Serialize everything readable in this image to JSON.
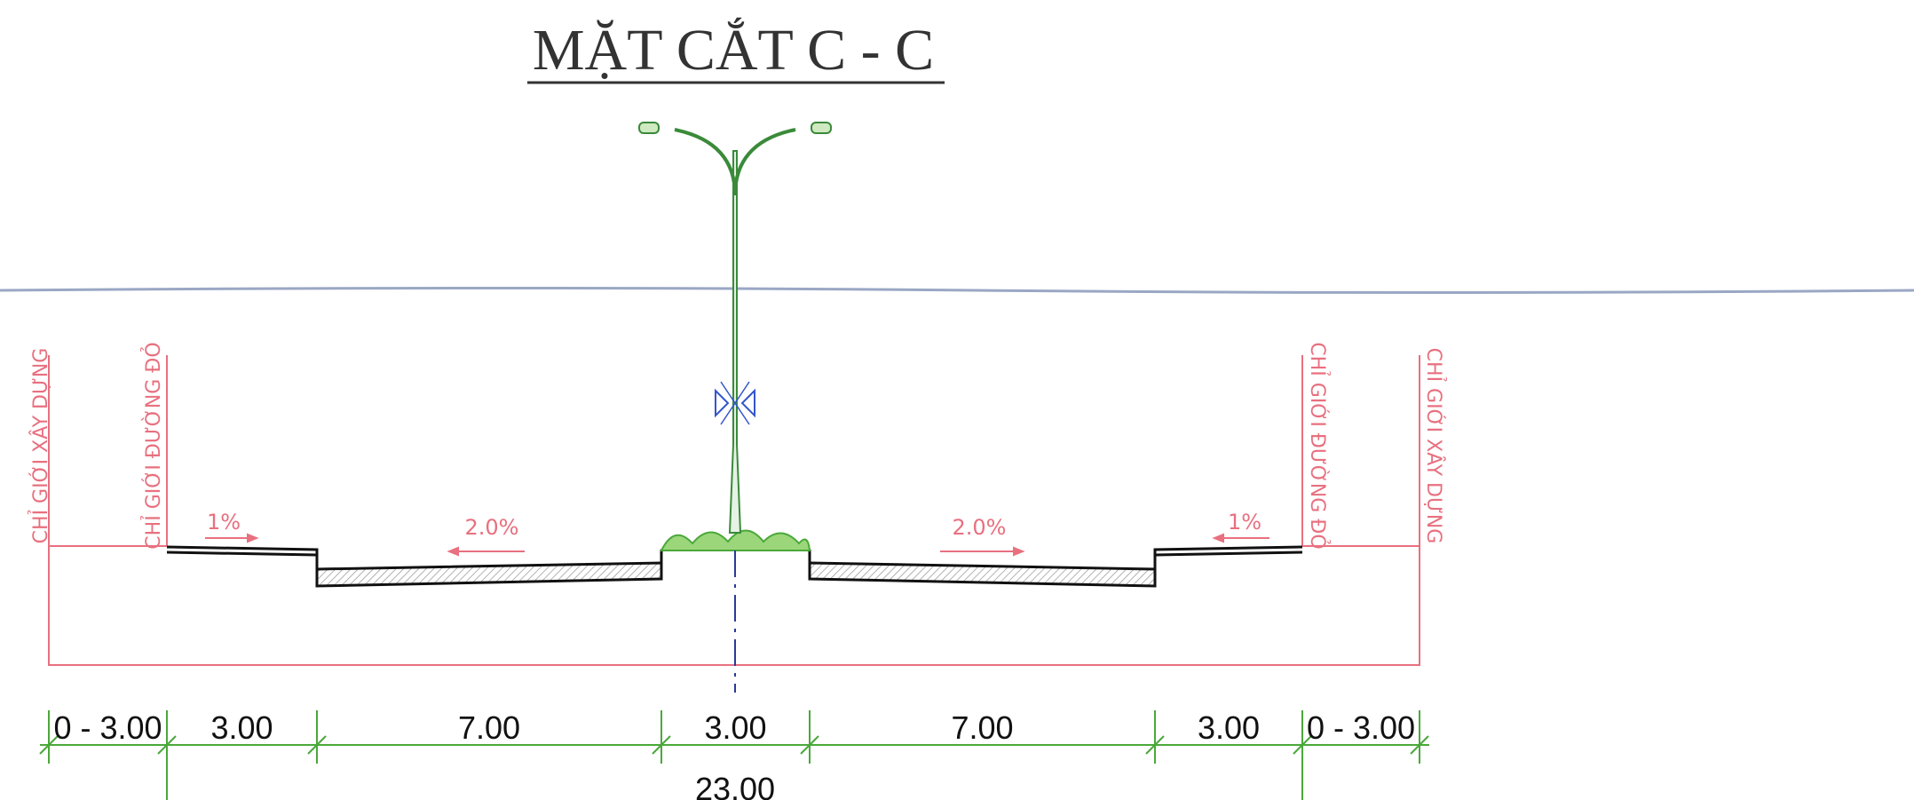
{
  "title": "MẶT CẮT C - C",
  "boundary_labels": {
    "left_building": "CHỈ GIỚI XÂY DỰNG",
    "left_red": "CHỈ GIỚI ĐƯỜNG ĐỎ",
    "right_red": "CHỈ GIỚI ĐƯỜNG ĐỎ",
    "right_building": "CHỈ GIỚI XÂY DỰNG"
  },
  "slopes": [
    "1%",
    "2.0%",
    "2.0%",
    "1%"
  ],
  "dimensions": [
    "0 - 3.00",
    "3.00",
    "7.00",
    "3.00",
    "7.00",
    "3.00",
    "0 - 3.00"
  ],
  "total_width": "23.00"
}
